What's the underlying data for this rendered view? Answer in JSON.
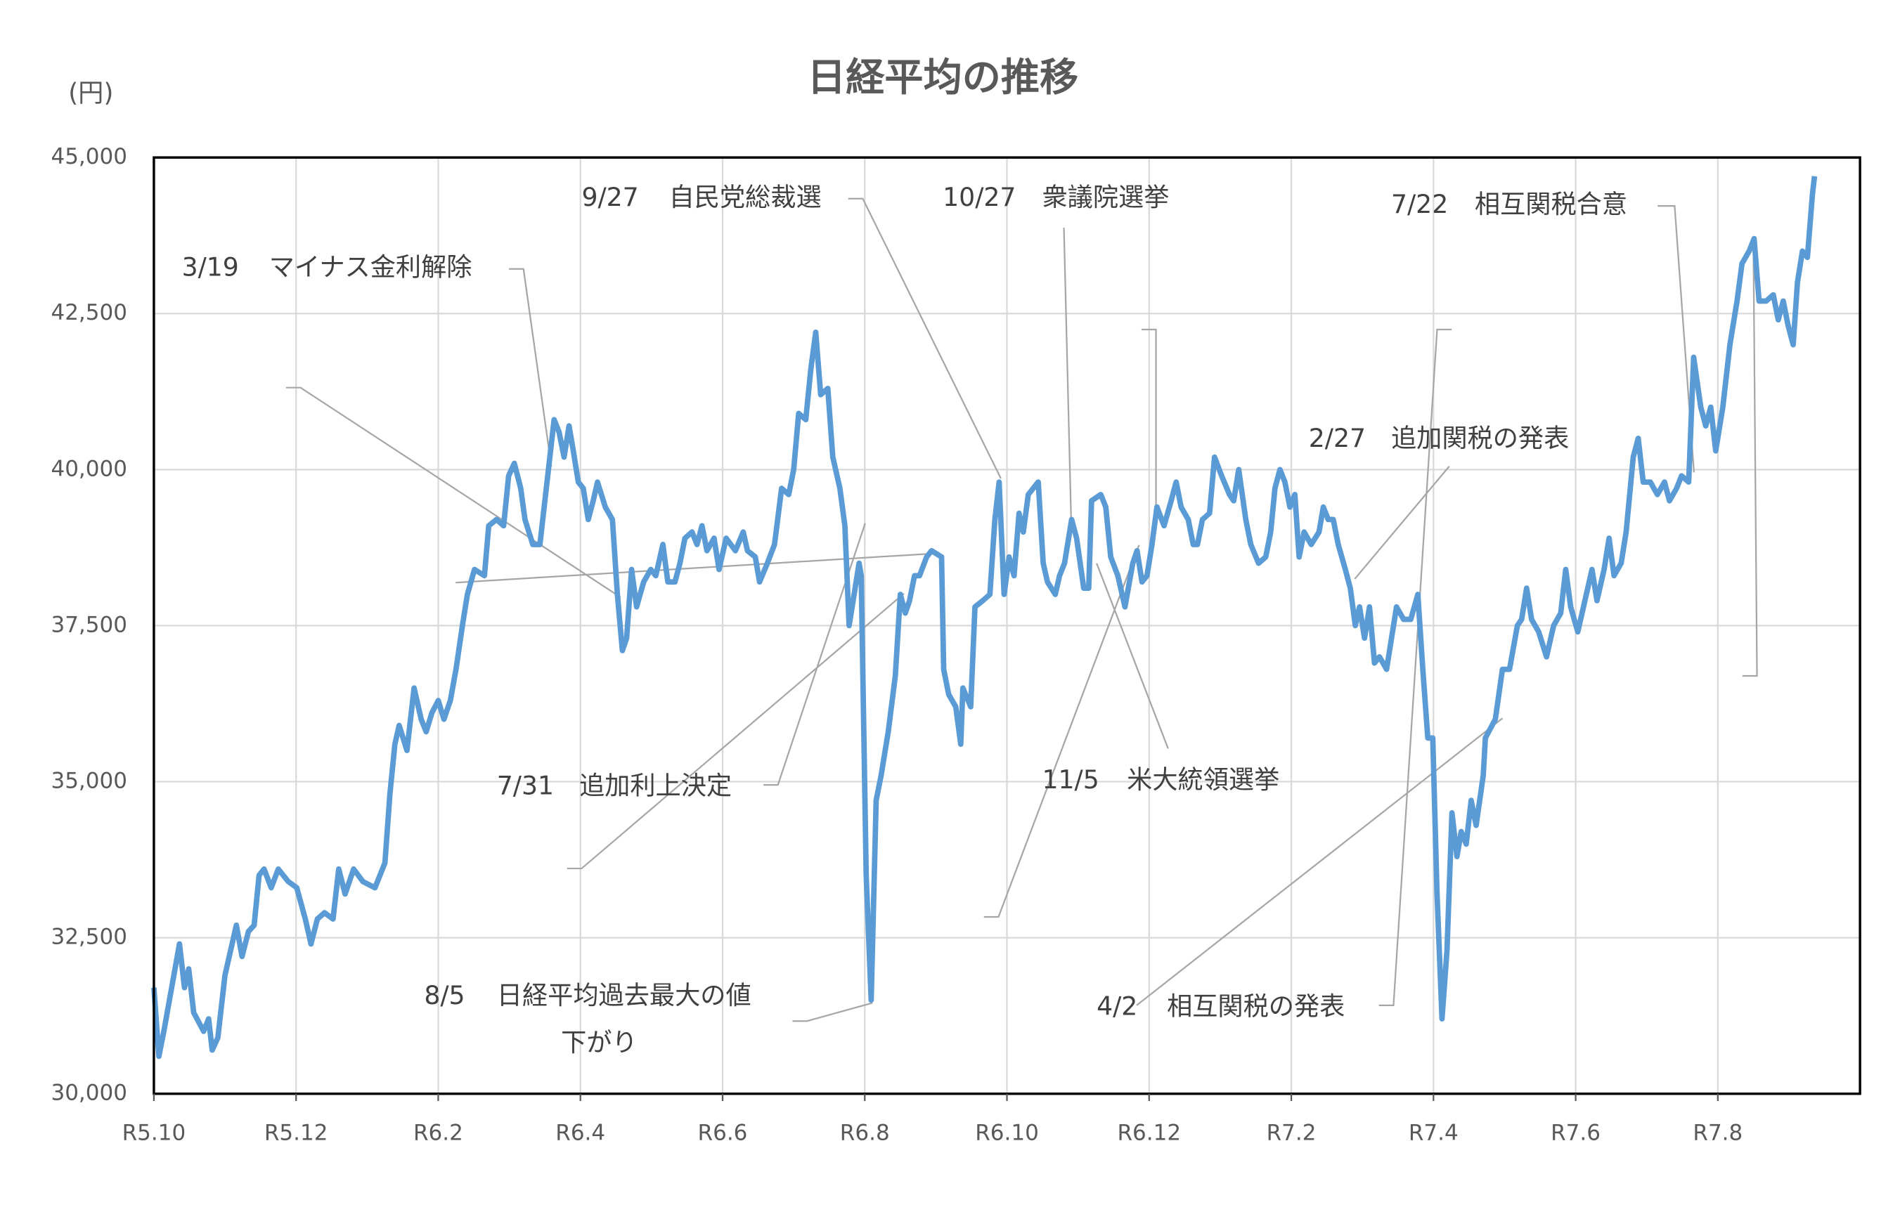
{
  "chart_data": {
    "type": "line",
    "title": "日経平均の推移",
    "y_label": "(円)",
    "x": [
      0,
      0.07,
      0.14,
      0.36,
      0.43,
      0.49,
      0.56,
      0.7,
      0.77,
      0.82,
      0.9,
      1.0,
      1.16,
      1.24,
      1.33,
      1.41,
      1.48,
      1.55,
      1.65,
      1.75,
      1.89,
      2.01,
      2.13,
      2.21,
      2.3,
      2.4,
      2.52,
      2.6,
      2.69,
      2.81,
      2.94,
      3.11,
      3.25,
      3.32,
      3.39,
      3.45,
      3.56,
      3.66,
      3.76,
      3.83,
      3.91,
      4.0,
      4.08,
      4.17,
      4.25,
      4.34,
      4.41,
      4.51,
      4.65,
      4.71,
      4.82,
      4.92,
      4.99,
      5.07,
      5.16,
      5.22,
      5.33,
      5.43,
      5.53,
      5.63,
      5.7,
      5.77,
      5.84,
      5.9,
      5.97,
      6.04,
      6.11,
      6.18,
      6.24,
      6.35,
      6.45,
      6.52,
      6.59,
      6.65,
      6.72,
      6.79,
      6.89,
      6.99,
      7.06,
      7.16,
      7.23,
      7.33,
      7.4,
      7.47,
      7.57,
      7.64,
      7.71,
      7.78,
      7.88,
      7.95,
      8.05,
      8.18,
      8.29,
      8.35,
      8.46,
      8.52,
      8.63,
      8.73,
      8.83,
      8.93,
      9.0,
      9.07,
      9.17,
      9.24,
      9.31,
      9.38,
      9.48,
      9.55,
      9.65,
      9.72,
      9.78,
      9.85,
      9.92,
      9.95,
      10.02,
      10.09,
      10.16,
      10.23,
      10.33,
      10.43,
      10.5,
      10.57,
      10.63,
      10.7,
      10.77,
      10.87,
      10.94,
      11.08,
      11.11,
      11.18,
      11.28,
      11.35,
      11.38,
      11.49,
      11.55,
      11.66,
      11.76,
      11.83,
      11.89,
      11.96,
      12.03,
      12.1,
      12.17,
      12.23,
      12.3,
      12.44,
      12.51,
      12.57,
      12.68,
      12.74,
      12.81,
      12.91,
      12.98,
      13.08,
      13.15,
      13.19,
      13.32,
      13.39,
      13.46,
      13.56,
      13.66,
      13.77,
      13.83,
      13.9,
      13.97,
      14.04,
      14.11,
      14.21,
      14.31,
      14.38,
      14.45,
      14.55,
      14.62,
      14.68,
      14.75,
      14.85,
      14.92,
      15.02,
      15.13,
      15.19,
      15.26,
      15.36,
      15.43,
      15.54,
      15.64,
      15.71,
      15.77,
      15.84,
      15.91,
      15.98,
      16.05,
      16.11,
      16.18,
      16.28,
      16.39,
      16.45,
      16.52,
      16.59,
      16.66,
      16.76,
      16.83,
      16.9,
      16.96,
      17.03,
      17.1,
      17.17,
      17.24,
      17.34,
      17.41,
      17.48,
      17.58,
      17.68,
      17.78,
      17.85,
      17.92,
      17.99,
      18.05,
      18.12,
      18.19,
      18.26,
      18.33,
      18.39,
      18.46,
      18.53,
      18.6,
      18.7,
      18.73,
      18.87,
      18.97,
      19.07,
      19.18,
      19.24,
      19.31,
      19.38,
      19.48,
      19.59,
      19.69,
      19.79,
      19.86,
      19.93,
      20.03,
      20.13,
      20.23,
      20.3,
      20.4,
      20.47,
      20.54,
      20.64,
      20.71,
      20.81,
      20.88,
      20.95,
      21.05,
      21.15,
      21.25,
      21.32,
      21.42,
      21.49,
      21.59,
      21.66,
      21.76,
      21.83,
      21.9,
      21.97,
      22.07,
      22.17,
      22.27,
      22.34,
      22.44,
      22.51,
      22.58,
      22.68,
      22.78,
      22.85,
      22.92,
      22.99,
      23.06,
      23.12,
      23.19,
      23.26,
      23.33,
      23.36
    ],
    "series": [
      {
        "name": "日経平均",
        "color": "#5b9bd5",
        "values": [
          31700,
          30600,
          31000,
          32400,
          31700,
          32000,
          31300,
          31000,
          31200,
          30700,
          30900,
          31900,
          32700,
          32200,
          32600,
          32700,
          33500,
          33600,
          33300,
          33600,
          33400,
          33300,
          32800,
          32400,
          32800,
          32900,
          32800,
          33600,
          33200,
          33600,
          33400,
          33300,
          33700,
          34800,
          35600,
          35900,
          35500,
          36500,
          36000,
          35800,
          36100,
          36300,
          36000,
          36300,
          36800,
          37500,
          38000,
          38400,
          38300,
          39100,
          39200,
          39100,
          39900,
          40100,
          39700,
          39200,
          38800,
          38800,
          39800,
          40800,
          40600,
          40200,
          40700,
          40300,
          39800,
          39700,
          39200,
          39500,
          39800,
          39400,
          39200,
          38000,
          37100,
          37300,
          38400,
          37800,
          38200,
          38400,
          38300,
          38800,
          38200,
          38200,
          38500,
          38900,
          39000,
          38800,
          39100,
          38700,
          38900,
          38400,
          38900,
          38700,
          39000,
          38700,
          38600,
          38200,
          38500,
          38800,
          39700,
          39600,
          40000,
          40900,
          40800,
          41600,
          42200,
          41200,
          41300,
          40200,
          39700,
          39100,
          37500,
          38000,
          38500,
          38300,
          33500,
          31500,
          34700,
          35100,
          35800,
          36700,
          38000,
          37700,
          37900,
          38300,
          38300,
          38600,
          38700,
          38600,
          36800,
          36400,
          36200,
          35600,
          36500,
          36200,
          37800,
          37900,
          38000,
          39200,
          39800,
          38000,
          38600,
          38300,
          39300,
          39000,
          39600,
          39800,
          38500,
          38200,
          38000,
          38300,
          38500,
          39200,
          38900,
          38100,
          38100,
          39500,
          39600,
          39400,
          38600,
          38300,
          37800,
          38500,
          38700,
          38200,
          38300,
          38800,
          39400,
          39100,
          39500,
          39800,
          39400,
          39200,
          38800,
          38800,
          39200,
          39300,
          40200,
          39900,
          39600,
          39500,
          40000,
          39200,
          38800,
          38500,
          38600,
          39000,
          39700,
          40000,
          39800,
          39400,
          39600,
          38600,
          39000,
          38800,
          39000,
          39400,
          39200,
          39200,
          38800,
          38400,
          38100,
          37500,
          37800,
          37300,
          37800,
          36900,
          37000,
          36800,
          37300,
          37800,
          37600,
          37600,
          38000,
          36800,
          35700,
          35700,
          33200,
          31200,
          32300,
          34500,
          33800,
          34200,
          34000,
          34700,
          34300,
          35100,
          35700,
          36000,
          36800,
          36800,
          37500,
          37600,
          38100,
          37600,
          37400,
          37000,
          37500,
          37700,
          38400,
          37800,
          37400,
          37900,
          38400,
          37900,
          38400,
          38900,
          38300,
          38500,
          39000,
          40200,
          40500,
          39800,
          39800,
          39600,
          39800,
          39500,
          39700,
          39900,
          39800,
          41800,
          41000,
          40700,
          41000,
          40300,
          41000,
          42000,
          42700,
          43300,
          43500,
          43700,
          42700,
          42700,
          42800,
          42400,
          42700,
          42300,
          42000,
          43000,
          43500,
          43400,
          44400,
          44700
        ]
      }
    ],
    "xlim": [
      0,
      24
    ],
    "xticks": [
      {
        "value": 0,
        "label": "R5.10"
      },
      {
        "value": 2,
        "label": "R5.12"
      },
      {
        "value": 4,
        "label": "R6.2"
      },
      {
        "value": 6,
        "label": "R6.4"
      },
      {
        "value": 8,
        "label": "R6.6"
      },
      {
        "value": 10,
        "label": "R6.8"
      },
      {
        "value": 12,
        "label": "R6.10"
      },
      {
        "value": 14,
        "label": "R6.12"
      },
      {
        "value": 16,
        "label": "R7.2"
      },
      {
        "value": 18,
        "label": "R7.4"
      },
      {
        "value": 20,
        "label": "R7.6"
      },
      {
        "value": 22,
        "label": "R7.8"
      }
    ],
    "ylim": [
      30000,
      45000
    ],
    "yticks": [
      {
        "value": 30000,
        "label": "30,000"
      },
      {
        "value": 32500,
        "label": "32,500"
      },
      {
        "value": 35000,
        "label": "35,000"
      },
      {
        "value": 37500,
        "label": "37,500"
      },
      {
        "value": 40000,
        "label": "40,000"
      },
      {
        "value": 42500,
        "label": "42,500"
      },
      {
        "value": 45000,
        "label": "45,000"
      }
    ],
    "grid": true,
    "annotations": [
      {
        "date": "3/19",
        "lines": [
          "マイナス金利解除"
        ]
      },
      {
        "date": "9/27",
        "lines": [
          "自民党総裁選"
        ]
      },
      {
        "date": "10/27",
        "lines": [
          "衆議院選挙"
        ]
      },
      {
        "date": "7/22",
        "lines": [
          "相互関税合意"
        ]
      },
      {
        "date": "2/27",
        "lines": [
          "追加関税の発表"
        ]
      },
      {
        "date": "7/31",
        "lines": [
          "追加利上決定"
        ]
      },
      {
        "date": "11/5",
        "lines": [
          "米大統領選挙"
        ]
      },
      {
        "date": "8/5",
        "lines": [
          "日経平均過去最大の値",
          "下がり"
        ]
      },
      {
        "date": "4/2",
        "lines": [
          "相互関税の発表"
        ]
      }
    ]
  }
}
